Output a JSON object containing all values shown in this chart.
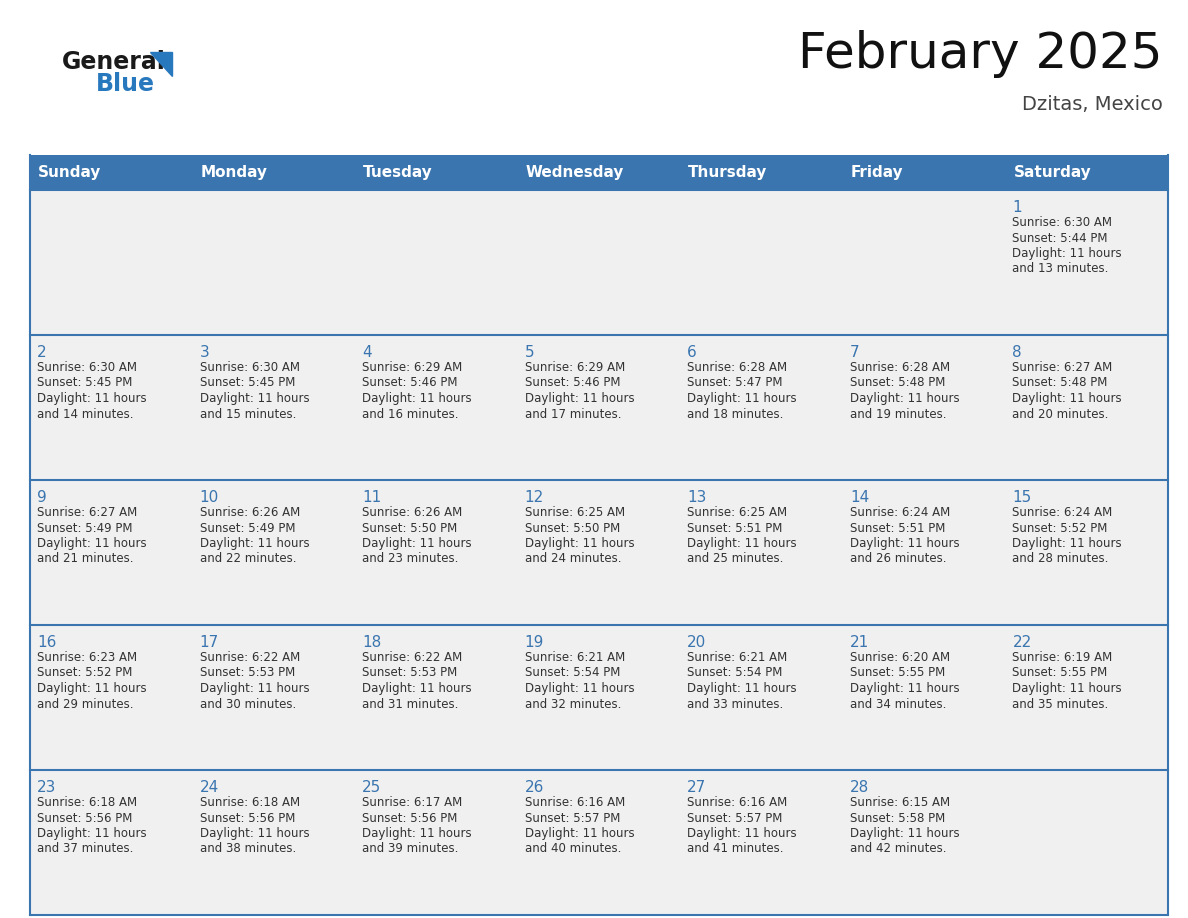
{
  "title": "February 2025",
  "subtitle": "Dzitas, Mexico",
  "days_of_week": [
    "Sunday",
    "Monday",
    "Tuesday",
    "Wednesday",
    "Thursday",
    "Friday",
    "Saturday"
  ],
  "header_bg": "#3A75B0",
  "header_text": "#FFFFFF",
  "row_bg": "#F0F0F0",
  "border_color": "#3A75B0",
  "day_number_color": "#3A75B0",
  "text_color": "#333333",
  "calendar_data": [
    [
      null,
      null,
      null,
      null,
      null,
      null,
      {
        "day": "1",
        "sunrise": "6:30 AM",
        "sunset": "5:44 PM",
        "daylight": "11 hours",
        "daylight2": "and 13 minutes."
      }
    ],
    [
      {
        "day": "2",
        "sunrise": "6:30 AM",
        "sunset": "5:45 PM",
        "daylight": "11 hours",
        "daylight2": "and 14 minutes."
      },
      {
        "day": "3",
        "sunrise": "6:30 AM",
        "sunset": "5:45 PM",
        "daylight": "11 hours",
        "daylight2": "and 15 minutes."
      },
      {
        "day": "4",
        "sunrise": "6:29 AM",
        "sunset": "5:46 PM",
        "daylight": "11 hours",
        "daylight2": "and 16 minutes."
      },
      {
        "day": "5",
        "sunrise": "6:29 AM",
        "sunset": "5:46 PM",
        "daylight": "11 hours",
        "daylight2": "and 17 minutes."
      },
      {
        "day": "6",
        "sunrise": "6:28 AM",
        "sunset": "5:47 PM",
        "daylight": "11 hours",
        "daylight2": "and 18 minutes."
      },
      {
        "day": "7",
        "sunrise": "6:28 AM",
        "sunset": "5:48 PM",
        "daylight": "11 hours",
        "daylight2": "and 19 minutes."
      },
      {
        "day": "8",
        "sunrise": "6:27 AM",
        "sunset": "5:48 PM",
        "daylight": "11 hours",
        "daylight2": "and 20 minutes."
      }
    ],
    [
      {
        "day": "9",
        "sunrise": "6:27 AM",
        "sunset": "5:49 PM",
        "daylight": "11 hours",
        "daylight2": "and 21 minutes."
      },
      {
        "day": "10",
        "sunrise": "6:26 AM",
        "sunset": "5:49 PM",
        "daylight": "11 hours",
        "daylight2": "and 22 minutes."
      },
      {
        "day": "11",
        "sunrise": "6:26 AM",
        "sunset": "5:50 PM",
        "daylight": "11 hours",
        "daylight2": "and 23 minutes."
      },
      {
        "day": "12",
        "sunrise": "6:25 AM",
        "sunset": "5:50 PM",
        "daylight": "11 hours",
        "daylight2": "and 24 minutes."
      },
      {
        "day": "13",
        "sunrise": "6:25 AM",
        "sunset": "5:51 PM",
        "daylight": "11 hours",
        "daylight2": "and 25 minutes."
      },
      {
        "day": "14",
        "sunrise": "6:24 AM",
        "sunset": "5:51 PM",
        "daylight": "11 hours",
        "daylight2": "and 26 minutes."
      },
      {
        "day": "15",
        "sunrise": "6:24 AM",
        "sunset": "5:52 PM",
        "daylight": "11 hours",
        "daylight2": "and 28 minutes."
      }
    ],
    [
      {
        "day": "16",
        "sunrise": "6:23 AM",
        "sunset": "5:52 PM",
        "daylight": "11 hours",
        "daylight2": "and 29 minutes."
      },
      {
        "day": "17",
        "sunrise": "6:22 AM",
        "sunset": "5:53 PM",
        "daylight": "11 hours",
        "daylight2": "and 30 minutes."
      },
      {
        "day": "18",
        "sunrise": "6:22 AM",
        "sunset": "5:53 PM",
        "daylight": "11 hours",
        "daylight2": "and 31 minutes."
      },
      {
        "day": "19",
        "sunrise": "6:21 AM",
        "sunset": "5:54 PM",
        "daylight": "11 hours",
        "daylight2": "and 32 minutes."
      },
      {
        "day": "20",
        "sunrise": "6:21 AM",
        "sunset": "5:54 PM",
        "daylight": "11 hours",
        "daylight2": "and 33 minutes."
      },
      {
        "day": "21",
        "sunrise": "6:20 AM",
        "sunset": "5:55 PM",
        "daylight": "11 hours",
        "daylight2": "and 34 minutes."
      },
      {
        "day": "22",
        "sunrise": "6:19 AM",
        "sunset": "5:55 PM",
        "daylight": "11 hours",
        "daylight2": "and 35 minutes."
      }
    ],
    [
      {
        "day": "23",
        "sunrise": "6:18 AM",
        "sunset": "5:56 PM",
        "daylight": "11 hours",
        "daylight2": "and 37 minutes."
      },
      {
        "day": "24",
        "sunrise": "6:18 AM",
        "sunset": "5:56 PM",
        "daylight": "11 hours",
        "daylight2": "and 38 minutes."
      },
      {
        "day": "25",
        "sunrise": "6:17 AM",
        "sunset": "5:56 PM",
        "daylight": "11 hours",
        "daylight2": "and 39 minutes."
      },
      {
        "day": "26",
        "sunrise": "6:16 AM",
        "sunset": "5:57 PM",
        "daylight": "11 hours",
        "daylight2": "and 40 minutes."
      },
      {
        "day": "27",
        "sunrise": "6:16 AM",
        "sunset": "5:57 PM",
        "daylight": "11 hours",
        "daylight2": "and 41 minutes."
      },
      {
        "day": "28",
        "sunrise": "6:15 AM",
        "sunset": "5:58 PM",
        "daylight": "11 hours",
        "daylight2": "and 42 minutes."
      },
      null
    ]
  ],
  "logo_general_color": "#1a1a1a",
  "logo_blue_color": "#2878BE",
  "logo_triangle_color": "#2878BE"
}
